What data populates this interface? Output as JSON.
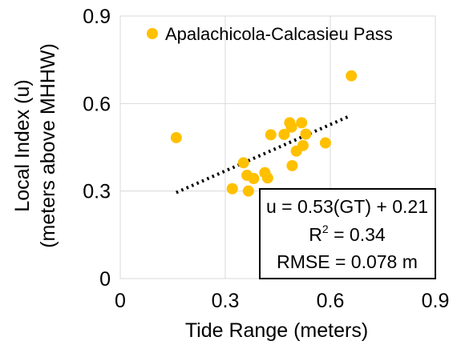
{
  "chart_data": {
    "type": "scatter",
    "title": "",
    "xlabel": "Tide Range (meters)",
    "ylabel_line1": "Local Index (u)",
    "ylabel_line2": "(meters above MHHW)",
    "xlim": [
      0,
      0.9
    ],
    "ylim": [
      0,
      0.9
    ],
    "x_ticks": [
      0,
      0.3,
      0.6,
      0.9
    ],
    "y_ticks": [
      0,
      0.3,
      0.6,
      0.9
    ],
    "x_tick_labels": [
      "0",
      "0.3",
      "0.6",
      "0.9"
    ],
    "y_tick_labels": [
      "0",
      "0.3",
      "0.6",
      "0.9"
    ],
    "grid": true,
    "legend_position": "top",
    "marker_color": "#FFC000",
    "series": [
      {
        "name": "Apalachicola-Calcasieu Pass",
        "points": [
          {
            "x": 0.16,
            "y": 0.483
          },
          {
            "x": 0.32,
            "y": 0.308
          },
          {
            "x": 0.352,
            "y": 0.397
          },
          {
            "x": 0.362,
            "y": 0.354
          },
          {
            "x": 0.366,
            "y": 0.3
          },
          {
            "x": 0.381,
            "y": 0.343
          },
          {
            "x": 0.413,
            "y": 0.363
          },
          {
            "x": 0.421,
            "y": 0.345
          },
          {
            "x": 0.43,
            "y": 0.493
          },
          {
            "x": 0.468,
            "y": 0.494
          },
          {
            "x": 0.484,
            "y": 0.534
          },
          {
            "x": 0.489,
            "y": 0.519
          },
          {
            "x": 0.491,
            "y": 0.387
          },
          {
            "x": 0.503,
            "y": 0.437
          },
          {
            "x": 0.518,
            "y": 0.534
          },
          {
            "x": 0.522,
            "y": 0.456
          },
          {
            "x": 0.53,
            "y": 0.495
          },
          {
            "x": 0.586,
            "y": 0.465
          },
          {
            "x": 0.66,
            "y": 0.695
          }
        ]
      }
    ],
    "trendline": {
      "slope": 0.53,
      "intercept": 0.21,
      "x_range": [
        0.16,
        0.65
      ],
      "style": "dotted",
      "color": "#000000"
    },
    "annotation": {
      "equation": "u = 0.53(GT) + 0.21",
      "r2_label": "R",
      "r2_superscript": "2",
      "r2_value": " = 0.34",
      "rmse": "RMSE = 0.078 m"
    }
  }
}
